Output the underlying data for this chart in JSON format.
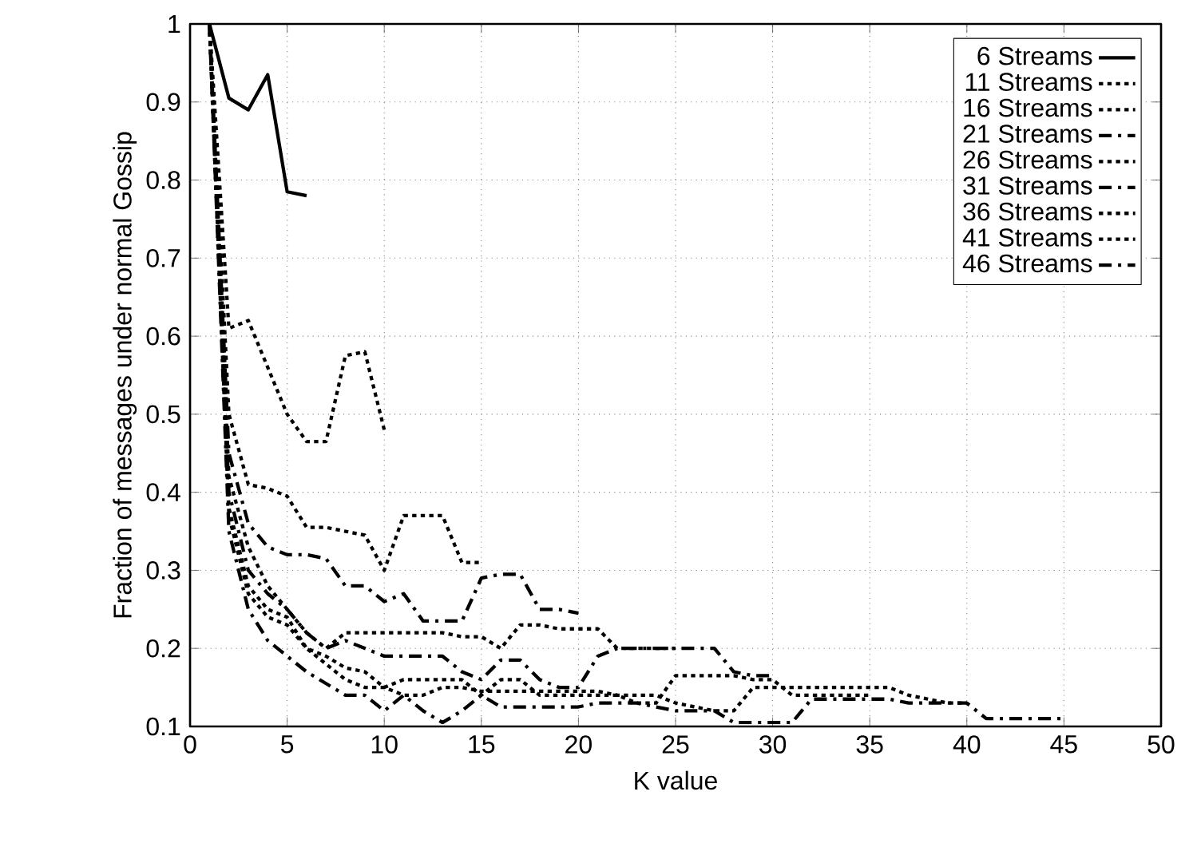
{
  "chart_data": {
    "type": "line",
    "xlabel": "K value",
    "ylabel": "Fraction of messages under normal Gossip",
    "xlim": [
      0,
      50
    ],
    "xticks": [
      0,
      5,
      10,
      15,
      20,
      25,
      30,
      35,
      40,
      45,
      50
    ],
    "ylim": [
      0.1,
      1
    ],
    "yticks": [
      0.1,
      0.2,
      0.3,
      0.4,
      0.5,
      0.6,
      0.7,
      0.8,
      0.9,
      1
    ],
    "grid": true,
    "legend": "top right",
    "marker": "none",
    "series": [
      {
        "name": "6 Streams",
        "color": "#000000",
        "line_style": "solid",
        "x": [
          1,
          2,
          3,
          4,
          5,
          6
        ],
        "values": [
          1,
          0.905,
          0.89,
          0.935,
          0.785,
          0.78
        ]
      },
      {
        "name": "11 Streams",
        "color": "#000000",
        "line_style": "dotted",
        "x": [
          1,
          2,
          3,
          4,
          5,
          6,
          7,
          8,
          9,
          10
        ],
        "values": [
          1,
          0.61,
          0.62,
          0.56,
          0.5,
          0.465,
          0.465,
          0.575,
          0.58,
          0.48
        ]
      },
      {
        "name": "16 Streams",
        "color": "#000000",
        "line_style": "dotted",
        "x": [
          1,
          2,
          3,
          4,
          5,
          6,
          7,
          8,
          9,
          10,
          11,
          12,
          13,
          14,
          15
        ],
        "values": [
          1,
          0.5,
          0.41,
          0.405,
          0.395,
          0.355,
          0.355,
          0.35,
          0.345,
          0.3,
          0.37,
          0.37,
          0.37,
          0.31,
          0.31
        ]
      },
      {
        "name": "21 Streams",
        "color": "#000000",
        "line_style": "dashed",
        "x": [
          1,
          2,
          3,
          4,
          5,
          6,
          7,
          8,
          9,
          10,
          11,
          12,
          13,
          14,
          15,
          16,
          17,
          18,
          19,
          20
        ],
        "values": [
          1,
          0.45,
          0.36,
          0.33,
          0.32,
          0.32,
          0.315,
          0.28,
          0.28,
          0.26,
          0.27,
          0.235,
          0.235,
          0.235,
          0.29,
          0.295,
          0.295,
          0.25,
          0.25,
          0.245
        ]
      },
      {
        "name": "26 Streams",
        "color": "#000000",
        "line_style": "dotted",
        "x": [
          1,
          2,
          3,
          4,
          5,
          6,
          7,
          8,
          9,
          10,
          11,
          12,
          13,
          14,
          15,
          16,
          17,
          18,
          19,
          20,
          21,
          22,
          23,
          24,
          25
        ],
        "values": [
          1,
          0.42,
          0.33,
          0.28,
          0.25,
          0.22,
          0.2,
          0.22,
          0.22,
          0.22,
          0.22,
          0.22,
          0.22,
          0.215,
          0.215,
          0.2,
          0.23,
          0.23,
          0.225,
          0.225,
          0.225,
          0.2,
          0.2,
          0.2,
          0.2
        ]
      },
      {
        "name": "31 Streams",
        "color": "#000000",
        "line_style": "dashed",
        "x": [
          1,
          2,
          3,
          4,
          5,
          6,
          7,
          8,
          9,
          10,
          11,
          12,
          13,
          14,
          15,
          16,
          17,
          18,
          19,
          20,
          21,
          22,
          23,
          24,
          25,
          26,
          27,
          28,
          29,
          30
        ],
        "values": [
          1,
          0.4,
          0.3,
          0.27,
          0.25,
          0.22,
          0.2,
          0.21,
          0.2,
          0.19,
          0.19,
          0.19,
          0.19,
          0.17,
          0.16,
          0.185,
          0.185,
          0.16,
          0.15,
          0.15,
          0.19,
          0.2,
          0.2,
          0.2,
          0.2,
          0.2,
          0.2,
          0.17,
          0.165,
          0.165
        ]
      },
      {
        "name": "36 Streams",
        "color": "#000000",
        "line_style": "dotted",
        "x": [
          1,
          2,
          3,
          4,
          5,
          6,
          7,
          8,
          9,
          10,
          11,
          12,
          13,
          14,
          15,
          16,
          17,
          18,
          19,
          20,
          21,
          22,
          23,
          24,
          25,
          26,
          27,
          28,
          29,
          30,
          31,
          32,
          33,
          34,
          35
        ],
        "values": [
          1,
          0.38,
          0.28,
          0.25,
          0.24,
          0.2,
          0.19,
          0.175,
          0.17,
          0.15,
          0.16,
          0.16,
          0.16,
          0.16,
          0.14,
          0.16,
          0.16,
          0.14,
          0.14,
          0.14,
          0.14,
          0.14,
          0.13,
          0.13,
          0.165,
          0.165,
          0.165,
          0.165,
          0.16,
          0.16,
          0.14,
          0.14,
          0.14,
          0.14,
          0.14
        ]
      },
      {
        "name": "41 Streams",
        "color": "#000000",
        "line_style": "dotted",
        "x": [
          1,
          2,
          3,
          4,
          5,
          6,
          7,
          8,
          9,
          10,
          11,
          12,
          13,
          14,
          15,
          16,
          17,
          18,
          19,
          20,
          21,
          22,
          23,
          24,
          25,
          26,
          27,
          28,
          29,
          30,
          31,
          32,
          33,
          34,
          35,
          36,
          37,
          38,
          39,
          40
        ],
        "values": [
          1,
          0.37,
          0.27,
          0.24,
          0.23,
          0.2,
          0.18,
          0.16,
          0.15,
          0.15,
          0.14,
          0.14,
          0.15,
          0.15,
          0.145,
          0.145,
          0.145,
          0.145,
          0.145,
          0.145,
          0.145,
          0.14,
          0.14,
          0.14,
          0.13,
          0.125,
          0.12,
          0.12,
          0.15,
          0.15,
          0.15,
          0.15,
          0.15,
          0.15,
          0.15,
          0.15,
          0.14,
          0.135,
          0.13,
          0.13
        ]
      },
      {
        "name": "46 Streams",
        "color": "#000000",
        "line_style": "dashed",
        "x": [
          1,
          2,
          3,
          4,
          5,
          6,
          7,
          8,
          9,
          10,
          11,
          12,
          13,
          14,
          15,
          16,
          17,
          18,
          19,
          20,
          21,
          22,
          23,
          24,
          25,
          26,
          27,
          28,
          29,
          30,
          31,
          32,
          33,
          34,
          35,
          36,
          37,
          38,
          39,
          40,
          41,
          42,
          43,
          44,
          45
        ],
        "values": [
          1,
          0.35,
          0.25,
          0.21,
          0.19,
          0.17,
          0.155,
          0.14,
          0.14,
          0.12,
          0.14,
          0.12,
          0.105,
          0.12,
          0.14,
          0.125,
          0.125,
          0.125,
          0.125,
          0.125,
          0.13,
          0.13,
          0.13,
          0.125,
          0.12,
          0.12,
          0.12,
          0.105,
          0.105,
          0.105,
          0.105,
          0.135,
          0.135,
          0.135,
          0.135,
          0.135,
          0.13,
          0.13,
          0.13,
          0.13,
          0.11,
          0.11,
          0.11,
          0.11,
          0.11
        ]
      }
    ]
  }
}
